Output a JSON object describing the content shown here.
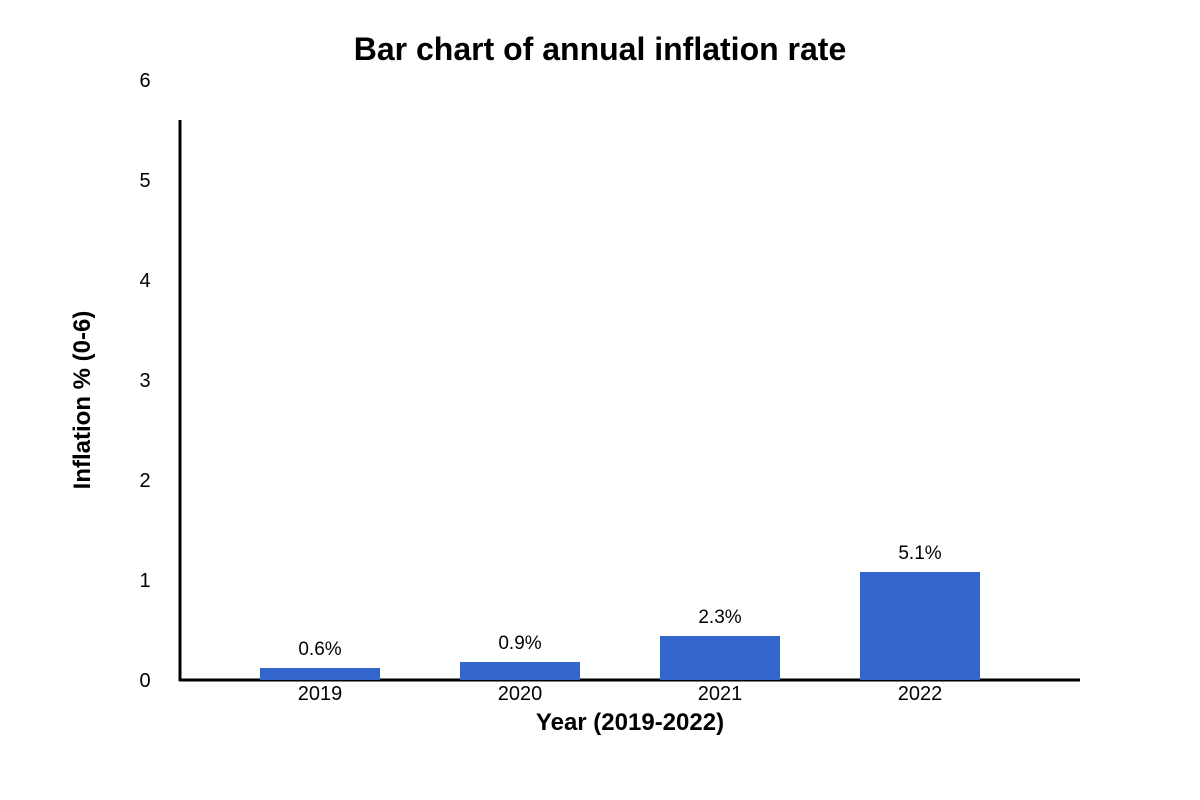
{
  "chart_data": {
    "type": "bar",
    "title": "Bar chart of annual inflation rate",
    "xlabel": "Year (2019-2022)",
    "ylabel": "Inflation % (0-6)",
    "categories": [
      "2019",
      "2020",
      "2021",
      "2022"
    ],
    "values": [
      0.6,
      0.9,
      2.3,
      5.1
    ],
    "bar_heights": [
      0.12,
      0.18,
      0.44,
      1.08
    ],
    "data_labels": [
      "0.6%",
      "0.9%",
      "2.3%",
      "5.1%"
    ],
    "y_ticks": [
      "0",
      "1",
      "2",
      "3",
      "4",
      "5",
      "6"
    ],
    "ylim": [
      0,
      6
    ],
    "grid": false,
    "legend": "none",
    "colors": {
      "bar": "#3366cc",
      "axis": "#000000",
      "text": "#000000",
      "background": "#ffffff"
    }
  }
}
